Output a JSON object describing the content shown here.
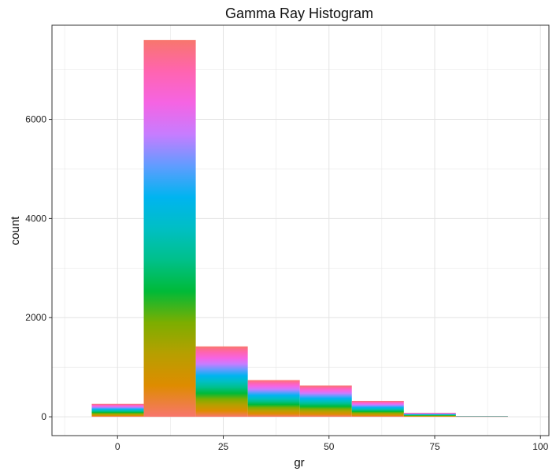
{
  "chart_data": {
    "type": "bar",
    "title": "Gamma Ray Histogram",
    "xlabel": "gr",
    "ylabel": "count",
    "xlim": [
      -15.5,
      102
    ],
    "ylim": [
      -380,
      7900
    ],
    "x_ticks": [
      0,
      25,
      50,
      75,
      100
    ],
    "x_tick_labels": [
      "0",
      "25",
      "50",
      "75",
      "100"
    ],
    "y_ticks": [
      0,
      2000,
      4000,
      6000
    ],
    "y_tick_labels": [
      "0",
      "2000",
      "4000",
      "6000"
    ],
    "grid": true,
    "legend": "none",
    "bin_width": 12.3,
    "bins": [
      {
        "x0": -6.1,
        "x1": 6.2,
        "count": 260
      },
      {
        "x0": 6.2,
        "x1": 18.5,
        "count": 7600
      },
      {
        "x0": 18.5,
        "x1": 30.8,
        "count": 1420
      },
      {
        "x0": 30.8,
        "x1": 43.1,
        "count": 740
      },
      {
        "x0": 43.1,
        "x1": 55.4,
        "count": 630
      },
      {
        "x0": 55.4,
        "x1": 67.7,
        "count": 320
      },
      {
        "x0": 67.7,
        "x1": 80.0,
        "count": 80
      },
      {
        "x0": 80.0,
        "x1": 92.3,
        "count": 15
      }
    ],
    "fill": "stacked rainbow gradient (colored by gr value)"
  },
  "colors": {
    "panel_border": "#333333",
    "grid": "#e3e3e3",
    "gradient_stops": [
      "#f8766d",
      "#de8c00",
      "#b79f00",
      "#7cae00",
      "#00ba38",
      "#00c08b",
      "#00bfc4",
      "#00b4f0",
      "#619cff",
      "#c77cff",
      "#f564e3",
      "#ff64b0",
      "#f8766d"
    ]
  }
}
